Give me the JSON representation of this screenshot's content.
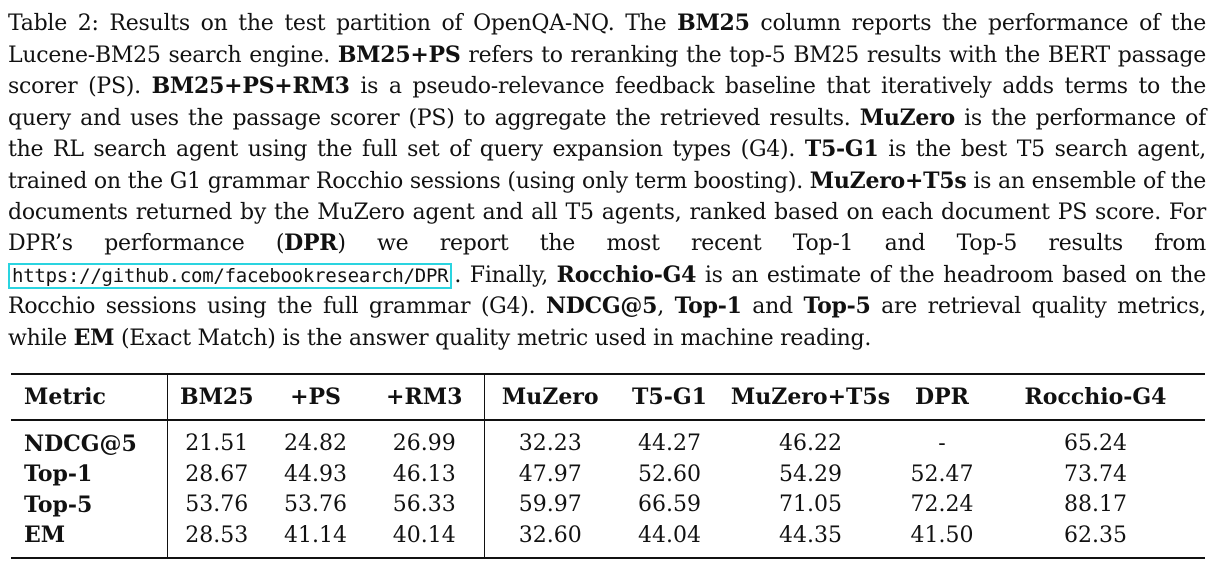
{
  "caption": {
    "label": "Table 2:",
    "t1": " Results on the test partition of OpenQA-NQ. The ",
    "b1": "BM25",
    "t2": " column reports the performance of the Lucene-BM25 search engine. ",
    "b2": "BM25+PS",
    "t3": " refers to reranking the top-5 BM25 results with the BERT passage scorer (PS). ",
    "b3": "BM25+PS+RM3",
    "t4": " is a pseudo-relevance feedback baseline that iteratively adds terms to the query and uses the passage scorer (PS) to aggregate the retrieved results. ",
    "b4": "MuZero",
    "t5": " is the performance of the RL search agent using the full set of query expansion types (G4). ",
    "b5": "T5-G1",
    "t6": " is the best T5 search agent, trained on the G1 grammar Rocchio sessions (using only term boosting). ",
    "b6": "MuZero+T5s",
    "t7": " is an ensemble of the documents returned by the MuZero agent and all T5 agents, ranked based on each document PS score. For DPR’s performance (",
    "b7": "DPR",
    "t8": ") we report the most recent Top-1 and Top-5 results from ",
    "link": "https://github.com/facebookresearch/DPR",
    "t9": ". Finally, ",
    "b8": "Rocchio-G4",
    "t10": " is an estimate of the headroom based on the Rocchio sessions using the full grammar (G4). ",
    "b9": "NDCG@5",
    "t11": ", ",
    "b10": "Top-1",
    "t12": " and ",
    "b11": "Top-5",
    "t13": " are retrieval quality metrics, while ",
    "b12": "EM",
    "t14": " (Exact Match) is the answer quality metric used in machine reading."
  },
  "table": {
    "headers": [
      "Metric",
      "BM25",
      "+PS",
      "+RM3",
      "MuZero",
      "T5-G1",
      "MuZero+T5s",
      "DPR",
      "Rocchio-G4"
    ],
    "rows": [
      [
        "NDCG@5",
        "21.51",
        "24.82",
        "26.99",
        "32.23",
        "44.27",
        "46.22",
        "-",
        "65.24"
      ],
      [
        "Top-1",
        "28.67",
        "44.93",
        "46.13",
        "47.97",
        "52.60",
        "54.29",
        "52.47",
        "73.74"
      ],
      [
        "Top-5",
        "53.76",
        "53.76",
        "56.33",
        "59.97",
        "66.59",
        "71.05",
        "72.24",
        "88.17"
      ],
      [
        "EM",
        "28.53",
        "41.14",
        "40.14",
        "32.60",
        "44.04",
        "44.35",
        "41.50",
        "62.35"
      ]
    ]
  }
}
